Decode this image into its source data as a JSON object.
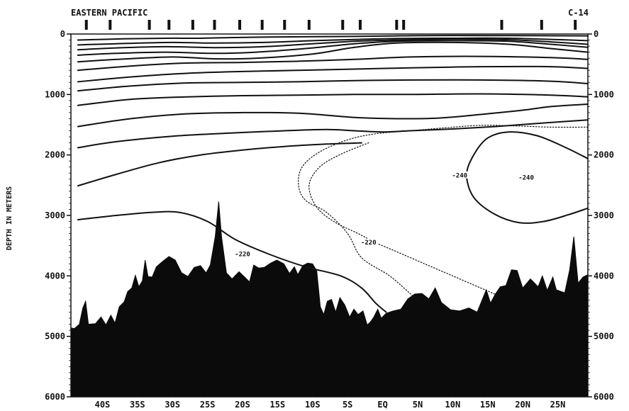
{
  "figure": {
    "title": "EASTERN PACIFIC",
    "code": "C-14",
    "ylabel": "DEPTH IN METERS"
  },
  "chart_data": {
    "type": "contour section",
    "title": "EASTERN PACIFIC",
    "code": "C-14",
    "xlabel": "",
    "ylabel": "DEPTH IN METERS",
    "x_ticks": [
      "40S",
      "35S",
      "30S",
      "25S",
      "20S",
      "15S",
      "10S",
      "5S",
      "EQ",
      "5N",
      "10N",
      "15N",
      "20N",
      "25N"
    ],
    "x_tick_values": [
      -40,
      -35,
      -30,
      -25,
      -20,
      -15,
      -10,
      -5,
      0,
      5,
      10,
      15,
      20,
      25
    ],
    "xlim": [
      -44.5,
      29.3
    ],
    "y_ticks": [
      "0",
      "1000",
      "2000",
      "3000",
      "4000",
      "5000",
      "6000"
    ],
    "y_tick_values": [
      0,
      1000,
      2000,
      3000,
      4000,
      5000,
      6000
    ],
    "ylim": [
      6000,
      0
    ],
    "contour_labels": [
      {
        "text": "-240",
        "lat": 20.5,
        "depth": 2370
      },
      {
        "text": "-240",
        "lat": 11.0,
        "depth": 2330
      },
      {
        "text": "-220",
        "lat": -2.0,
        "depth": 3440
      },
      {
        "text": "-220",
        "lat": -20.0,
        "depth": 3630
      }
    ],
    "contours": [
      {
        "style": "solid",
        "points": [
          [
            -43.5,
            460
          ],
          [
            -38,
            420
          ],
          [
            -30,
            380
          ],
          [
            -24,
            410
          ],
          [
            -18,
            400
          ],
          [
            -10,
            330
          ],
          [
            -4,
            220
          ],
          [
            2,
            150
          ],
          [
            10,
            140
          ],
          [
            18,
            170
          ],
          [
            24,
            240
          ],
          [
            29.3,
            300
          ]
        ]
      },
      {
        "style": "solid",
        "points": [
          [
            -43.5,
            350
          ],
          [
            -38,
            320
          ],
          [
            -31,
            300
          ],
          [
            -24,
            320
          ],
          [
            -18,
            300
          ],
          [
            -10,
            230
          ],
          [
            -4,
            160
          ],
          [
            2,
            120
          ],
          [
            10,
            110
          ],
          [
            18,
            120
          ],
          [
            24,
            170
          ],
          [
            29.3,
            220
          ]
        ]
      },
      {
        "style": "solid",
        "points": [
          [
            -43.5,
            260
          ],
          [
            -38,
            230
          ],
          [
            -31,
            210
          ],
          [
            -24,
            225
          ],
          [
            -17,
            210
          ],
          [
            -10,
            160
          ],
          [
            -4,
            120
          ],
          [
            2,
            100
          ],
          [
            10,
            85
          ],
          [
            18,
            95
          ],
          [
            24,
            130
          ],
          [
            29.3,
            170
          ]
        ]
      },
      {
        "style": "solid",
        "points": [
          [
            -43.5,
            180
          ],
          [
            -38,
            160
          ],
          [
            -30,
            140
          ],
          [
            -24,
            150
          ],
          [
            -17,
            140
          ],
          [
            -10,
            110
          ],
          [
            -4,
            90
          ],
          [
            2,
            75
          ],
          [
            10,
            70
          ],
          [
            18,
            70
          ],
          [
            29.3,
            110
          ]
        ]
      },
      {
        "style": "solid",
        "points": [
          [
            -43.5,
            100
          ],
          [
            -37,
            80
          ],
          [
            -31,
            70
          ],
          [
            -26,
            70
          ],
          [
            -22,
            60
          ],
          [
            -16,
            50
          ],
          [
            -10,
            45
          ],
          [
            -4,
            40
          ],
          [
            2,
            30
          ],
          [
            10,
            25
          ],
          [
            29.3,
            30
          ]
        ]
      },
      {
        "style": "solid",
        "points": [
          [
            -43.5,
            600
          ],
          [
            -36,
            530
          ],
          [
            -28,
            480
          ],
          [
            -20,
            470
          ],
          [
            -12,
            450
          ],
          [
            -4,
            420
          ],
          [
            4,
            380
          ],
          [
            14,
            370
          ],
          [
            24,
            390
          ],
          [
            29.3,
            420
          ]
        ]
      },
      {
        "style": "solid",
        "points": [
          [
            -43.5,
            790
          ],
          [
            -36,
            710
          ],
          [
            -28,
            650
          ],
          [
            -20,
            620
          ],
          [
            -12,
            600
          ],
          [
            -4,
            580
          ],
          [
            4,
            560
          ],
          [
            14,
            540
          ],
          [
            24,
            540
          ],
          [
            29.3,
            570
          ]
        ]
      },
      {
        "style": "solid",
        "points": [
          [
            -43.5,
            940
          ],
          [
            -36,
            860
          ],
          [
            -28,
            810
          ],
          [
            -20,
            800
          ],
          [
            -12,
            790
          ],
          [
            -4,
            770
          ],
          [
            4,
            760
          ],
          [
            14,
            760
          ],
          [
            24,
            780
          ],
          [
            29.3,
            820
          ]
        ]
      },
      {
        "style": "solid",
        "points": [
          [
            -43.5,
            1180
          ],
          [
            -36,
            1080
          ],
          [
            -28,
            1040
          ],
          [
            -20,
            1020
          ],
          [
            -12,
            1010
          ],
          [
            -4,
            1000
          ],
          [
            4,
            1000
          ],
          [
            14,
            990
          ],
          [
            24,
            1010
          ],
          [
            29.3,
            1040
          ]
        ]
      },
      {
        "style": "solid",
        "points": [
          [
            -43.5,
            1530
          ],
          [
            -36,
            1400
          ],
          [
            -28,
            1320
          ],
          [
            -20,
            1300
          ],
          [
            -12,
            1310
          ],
          [
            -4,
            1380
          ],
          [
            2,
            1400
          ],
          [
            8,
            1390
          ],
          [
            14,
            1330
          ],
          [
            20,
            1260
          ],
          [
            24,
            1200
          ],
          [
            29.3,
            1160
          ]
        ]
      },
      {
        "style": "solid",
        "points": [
          [
            -43.5,
            1880
          ],
          [
            -38,
            1780
          ],
          [
            -30,
            1690
          ],
          [
            -22,
            1640
          ],
          [
            -14,
            1600
          ],
          [
            -8,
            1580
          ],
          [
            -4,
            1600
          ],
          [
            0,
            1620
          ],
          [
            4,
            1600
          ],
          [
            10,
            1570
          ],
          [
            16,
            1530
          ],
          [
            22,
            1480
          ],
          [
            29.3,
            1420
          ]
        ]
      },
      {
        "style": "solid",
        "points": [
          [
            -43.5,
            2510
          ],
          [
            -38,
            2320
          ],
          [
            -32,
            2130
          ],
          [
            -26,
            2000
          ],
          [
            -20,
            1920
          ],
          [
            -14,
            1860
          ],
          [
            -8,
            1820
          ],
          [
            -3,
            1800
          ]
        ]
      },
      {
        "style": "solid",
        "points": [
          [
            -43.5,
            3070
          ],
          [
            -38,
            3000
          ],
          [
            -33,
            2950
          ],
          [
            -29,
            2950
          ],
          [
            -25,
            3100
          ],
          [
            -21,
            3400
          ],
          [
            -16,
            3650
          ],
          [
            -11,
            3850
          ],
          [
            -6,
            4000
          ],
          [
            -3,
            4200
          ],
          [
            -1,
            4450
          ],
          [
            0.5,
            4600
          ]
        ]
      },
      {
        "style": "solid",
        "points": [
          [
            29.3,
            2060
          ],
          [
            26,
            1870
          ],
          [
            22,
            1680
          ],
          [
            18,
            1620
          ],
          [
            15,
            1720
          ],
          [
            13,
            2000
          ],
          [
            12,
            2330
          ],
          [
            13,
            2700
          ],
          [
            16,
            2980
          ],
          [
            19.5,
            3120
          ],
          [
            23,
            3100
          ],
          [
            26.5,
            2990
          ],
          [
            29.3,
            2880
          ]
        ]
      },
      {
        "style": "dotted",
        "points": [
          [
            -2,
            1800
          ],
          [
            -6,
            1990
          ],
          [
            -9,
            2200
          ],
          [
            -10.5,
            2500
          ],
          [
            -9.5,
            2850
          ],
          [
            -7,
            3100
          ],
          [
            -3.5,
            3300
          ],
          [
            -1,
            3450
          ],
          [
            2,
            3600
          ],
          [
            6,
            3800
          ],
          [
            10,
            4000
          ],
          [
            14,
            4200
          ],
          [
            17,
            4350
          ]
        ]
      },
      {
        "style": "dotted",
        "points": [
          [
            29.3,
            1540
          ],
          [
            24,
            1540
          ],
          [
            19,
            1520
          ],
          [
            14,
            1510
          ],
          [
            9,
            1550
          ],
          [
            4,
            1600
          ],
          [
            -1,
            1650
          ],
          [
            -5,
            1750
          ],
          [
            -9,
            1950
          ],
          [
            -11.5,
            2200
          ],
          [
            -12,
            2500
          ],
          [
            -11,
            2750
          ],
          [
            -8,
            2950
          ],
          [
            -5,
            3300
          ],
          [
            -3,
            3700
          ],
          [
            1,
            4000
          ],
          [
            4,
            4300
          ],
          [
            6,
            4500
          ]
        ]
      }
    ],
    "bathymetry": {
      "units": "depth in meters",
      "points": [
        [
          -44.5,
          4860
        ],
        [
          -44,
          4870
        ],
        [
          -43.3,
          4800
        ],
        [
          -42.8,
          4530
        ],
        [
          -42.4,
          4420
        ],
        [
          -42,
          4800
        ],
        [
          -41,
          4790
        ],
        [
          -40.2,
          4680
        ],
        [
          -39.5,
          4810
        ],
        [
          -38.8,
          4650
        ],
        [
          -38.2,
          4780
        ],
        [
          -37.6,
          4510
        ],
        [
          -36.9,
          4430
        ],
        [
          -36.4,
          4260
        ],
        [
          -35.8,
          4200
        ],
        [
          -35.3,
          3990
        ],
        [
          -34.8,
          4180
        ],
        [
          -34.3,
          4080
        ],
        [
          -33.9,
          3740
        ],
        [
          -33.5,
          4010
        ],
        [
          -32.9,
          4020
        ],
        [
          -32.3,
          3850
        ],
        [
          -31.4,
          3760
        ],
        [
          -30.5,
          3680
        ],
        [
          -29.6,
          3740
        ],
        [
          -28.7,
          3950
        ],
        [
          -27.8,
          4010
        ],
        [
          -26.9,
          3860
        ],
        [
          -26,
          3830
        ],
        [
          -25.2,
          3950
        ],
        [
          -24.6,
          3820
        ],
        [
          -23.9,
          3350
        ],
        [
          -23.4,
          2770
        ],
        [
          -23,
          3350
        ],
        [
          -22.3,
          3950
        ],
        [
          -21.5,
          4050
        ],
        [
          -20.5,
          3930
        ],
        [
          -19.7,
          4020
        ],
        [
          -19,
          4100
        ],
        [
          -18.4,
          3820
        ],
        [
          -17.7,
          3870
        ],
        [
          -16.9,
          3860
        ],
        [
          -16,
          3790
        ],
        [
          -15.1,
          3740
        ],
        [
          -14.1,
          3800
        ],
        [
          -13.3,
          3960
        ],
        [
          -12.6,
          3850
        ],
        [
          -12.1,
          3980
        ],
        [
          -11.4,
          3830
        ],
        [
          -10.7,
          3790
        ],
        [
          -10,
          3800
        ],
        [
          -9.4,
          3920
        ],
        [
          -8.9,
          4510
        ],
        [
          -8.4,
          4640
        ],
        [
          -7.9,
          4420
        ],
        [
          -7.3,
          4390
        ],
        [
          -6.7,
          4600
        ],
        [
          -6.1,
          4360
        ],
        [
          -5.4,
          4480
        ],
        [
          -4.7,
          4680
        ],
        [
          -4.1,
          4550
        ],
        [
          -3.5,
          4640
        ],
        [
          -2.8,
          4580
        ],
        [
          -2.2,
          4810
        ],
        [
          -1.8,
          4770
        ],
        [
          -1.3,
          4690
        ],
        [
          -0.7,
          4550
        ],
        [
          -0.2,
          4700
        ],
        [
          0.5,
          4620
        ],
        [
          1.5,
          4580
        ],
        [
          2.6,
          4550
        ],
        [
          3.6,
          4380
        ],
        [
          4.6,
          4300
        ],
        [
          5.6,
          4290
        ],
        [
          6.6,
          4380
        ],
        [
          7.5,
          4200
        ],
        [
          8.4,
          4440
        ],
        [
          9.7,
          4560
        ],
        [
          11,
          4580
        ],
        [
          12.3,
          4530
        ],
        [
          13.5,
          4600
        ],
        [
          14.2,
          4400
        ],
        [
          14.8,
          4230
        ],
        [
          15.4,
          4450
        ],
        [
          16.1,
          4300
        ],
        [
          16.8,
          4180
        ],
        [
          17.6,
          4160
        ],
        [
          18.4,
          3900
        ],
        [
          19.2,
          3910
        ],
        [
          20,
          4200
        ],
        [
          21.1,
          4050
        ],
        [
          22.2,
          4180
        ],
        [
          22.8,
          4000
        ],
        [
          23.5,
          4240
        ],
        [
          24.3,
          4020
        ],
        [
          24.8,
          4230
        ],
        [
          26,
          4280
        ],
        [
          26.7,
          3900
        ],
        [
          27.3,
          3350
        ],
        [
          27.9,
          4120
        ],
        [
          28.6,
          4020
        ],
        [
          29.3,
          3980
        ],
        [
          29.3,
          6000
        ],
        [
          -44.5,
          6000
        ]
      ]
    },
    "stations": [
      -42.3,
      -38.9,
      -33.3,
      -30.5,
      -27.1,
      -24.0,
      -20.4,
      -17.2,
      -14.0,
      -10.5,
      -5.7,
      -3.2,
      2.0,
      3.0,
      17.0,
      22.7,
      27.5
    ]
  }
}
